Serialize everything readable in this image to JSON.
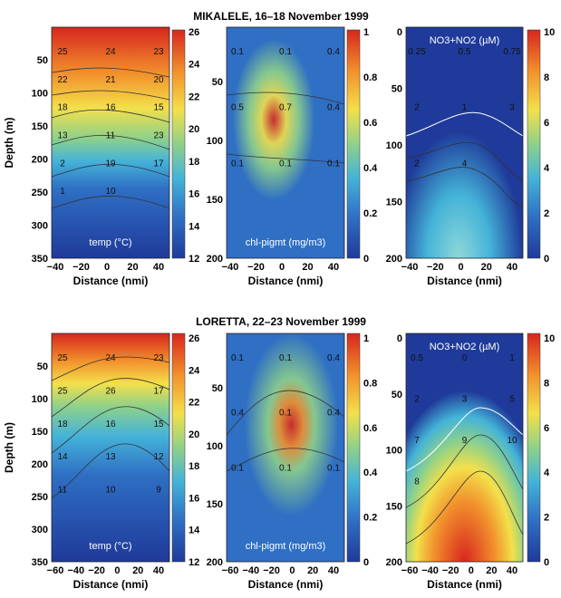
{
  "chart_data": [
    {
      "type": "contour",
      "title": "MIKALELE, 16–18 November 1999",
      "variable": "temp (°C)",
      "xlabel": "Distance (nmi)",
      "ylabel": "Depth (m)",
      "x_ticks": [
        "−40",
        "−20",
        "0",
        "20",
        "40"
      ],
      "y_ticks": [
        "50",
        "100",
        "150",
        "200",
        "250",
        "300",
        "350"
      ],
      "xlim": [
        -40,
        50
      ],
      "ylim": [
        0,
        350
      ],
      "colorbar": {
        "ticks": [
          "26",
          "24",
          "22",
          "20",
          "18",
          "16",
          "14",
          "12"
        ],
        "range": [
          12,
          26
        ]
      },
      "contour_labels": [
        "25",
        "24",
        "23",
        "22",
        "21",
        "20",
        "18",
        "16",
        "15",
        "13",
        "11",
        "23",
        "2",
        "19",
        "17",
        "1",
        "10"
      ],
      "colors": {
        "low": "#1f3a9a",
        "high": "#d7261e"
      }
    },
    {
      "type": "contour",
      "title": "MIKALELE, 16–18 November 1999",
      "variable": "chl-pigmt (mg/m3)",
      "xlabel": "Distance (nmi)",
      "ylabel": "",
      "x_ticks": [
        "−40",
        "−20",
        "0",
        "20",
        "40"
      ],
      "y_ticks": [
        "50",
        "100",
        "150",
        "200"
      ],
      "xlim": [
        -40,
        50
      ],
      "ylim": [
        0,
        200
      ],
      "colorbar": {
        "ticks": [
          "1",
          "0.8",
          "0.6",
          "0.4",
          "0.2",
          "0"
        ],
        "range": [
          0,
          1
        ]
      },
      "contour_labels": [
        "0.1",
        "0.1",
        "0.4",
        "0.5",
        "0.7",
        "0.4",
        "0.1",
        "0.1",
        "0.1"
      ],
      "colors": {
        "low": "#1f3a9a",
        "high": "#d7261e"
      }
    },
    {
      "type": "contour",
      "title": "MIKALELE, 16–18 November 1999",
      "variable": "NO3+NO2 (µM)",
      "xlabel": "Distance (nmi)",
      "ylabel": "",
      "x_ticks": [
        "−40",
        "−20",
        "0",
        "20",
        "40"
      ],
      "y_ticks": [
        "0",
        "50",
        "100",
        "150",
        "200"
      ],
      "xlim": [
        -40,
        50
      ],
      "ylim": [
        0,
        200
      ],
      "colorbar": {
        "ticks": [
          "10",
          "8",
          "6",
          "4",
          "2",
          "0"
        ],
        "range": [
          0,
          10
        ]
      },
      "contour_labels": [
        "0.25",
        "0.5",
        "0.75",
        "2",
        "1",
        "3",
        "2",
        "4"
      ],
      "colors": {
        "low": "#1f3a9a",
        "high": "#d7261e"
      }
    },
    {
      "type": "contour",
      "title": "LORETTA, 22–23 November 1999",
      "variable": "temp (°C)",
      "xlabel": "Distance (nmi)",
      "ylabel": "Depth (m)",
      "x_ticks": [
        "−60",
        "−40",
        "−20",
        "0",
        "20",
        "40"
      ],
      "y_ticks": [
        "50",
        "100",
        "150",
        "200",
        "250",
        "300",
        "350"
      ],
      "xlim": [
        -60,
        40
      ],
      "ylim": [
        0,
        350
      ],
      "colorbar": {
        "ticks": [
          "26",
          "24",
          "22",
          "20",
          "18",
          "16",
          "14",
          "12"
        ],
        "range": [
          12,
          26
        ]
      },
      "contour_labels": [
        "25",
        "24",
        "23",
        "25",
        "26",
        "17",
        "18",
        "16",
        "15",
        "14",
        "13",
        "12",
        "11",
        "10",
        "9"
      ],
      "colors": {
        "low": "#1f3a9a",
        "high": "#d7261e"
      }
    },
    {
      "type": "contour",
      "title": "LORETTA, 22–23 November 1999",
      "variable": "chl-pigmt (mg/m3)",
      "xlabel": "Distance (nmi)",
      "ylabel": "",
      "x_ticks": [
        "−60",
        "−40",
        "−20",
        "0",
        "20",
        "40"
      ],
      "y_ticks": [
        "50",
        "100",
        "150",
        "200"
      ],
      "xlim": [
        -60,
        40
      ],
      "ylim": [
        0,
        200
      ],
      "colorbar": {
        "ticks": [
          "1",
          "0.8",
          "0.6",
          "0.4",
          "0.2",
          "0"
        ],
        "range": [
          0,
          1
        ]
      },
      "contour_labels": [
        "0.1",
        "0.1",
        "0.4",
        "0.4",
        "0.1",
        "0.4",
        "0.1",
        "0.1",
        "0.1"
      ],
      "colors": {
        "low": "#1f3a9a",
        "high": "#d7261e"
      }
    },
    {
      "type": "contour",
      "title": "LORETTA, 22–23 November 1999",
      "variable": "NO3+NO2 (µM)",
      "xlabel": "Distance (nmi)",
      "ylabel": "",
      "x_ticks": [
        "−60",
        "−40",
        "−20",
        "0",
        "20",
        "40"
      ],
      "y_ticks": [
        "0",
        "50",
        "100",
        "150",
        "200"
      ],
      "xlim": [
        -60,
        40
      ],
      "ylim": [
        0,
        200
      ],
      "colorbar": {
        "ticks": [
          "10",
          "8",
          "6",
          "4",
          "2",
          "0"
        ],
        "range": [
          0,
          10
        ]
      },
      "contour_labels": [
        "0.5",
        "0",
        "1",
        "2",
        "3",
        "5",
        "7",
        "9",
        "10",
        "8"
      ],
      "colors": {
        "low": "#1f3a9a",
        "high": "#d7261e"
      }
    }
  ]
}
